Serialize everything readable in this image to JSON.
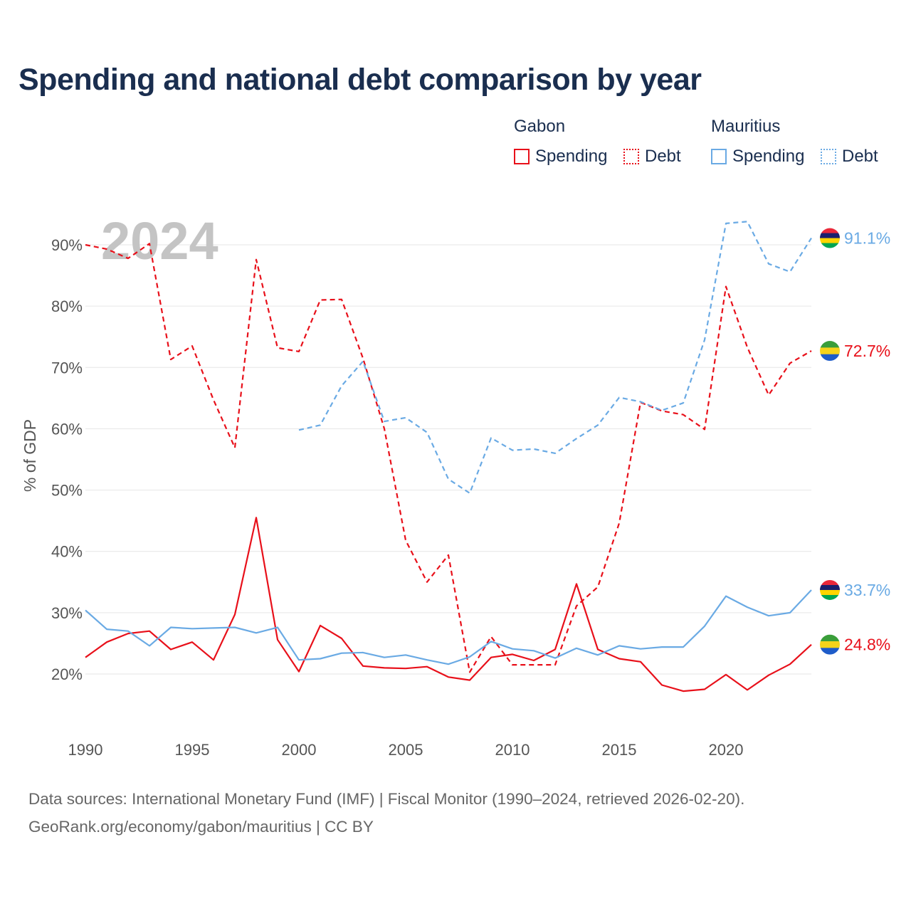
{
  "title": "Spending and national debt comparison by year",
  "legend": {
    "groups": [
      {
        "name": "Gabon",
        "color": "#e8101a",
        "items": [
          {
            "label": "Spending",
            "style": "solid"
          },
          {
            "label": "Debt",
            "style": "dotted"
          }
        ]
      },
      {
        "name": "Mauritius",
        "color": "#6aaae4",
        "items": [
          {
            "label": "Spending",
            "style": "solid"
          },
          {
            "label": "Debt",
            "style": "dotted"
          }
        ]
      }
    ]
  },
  "year_watermark": "2024",
  "footer": {
    "line1": "Data sources: International Monetary Fund (IMF) | Fiscal Monitor (1990–2024, retrieved 2026-02-20).",
    "line2": "GeoRank.org/economy/gabon/mauritius | CC BY"
  },
  "chart_data": {
    "type": "line",
    "title": "Spending and national debt comparison by year",
    "xlabel": "",
    "ylabel": "% of GDP",
    "xlim": [
      1990,
      2024
    ],
    "ylim": [
      10,
      95
    ],
    "x_ticks": [
      1990,
      1995,
      2000,
      2005,
      2010,
      2015,
      2020
    ],
    "y_ticks": [
      20,
      30,
      40,
      50,
      60,
      70,
      80,
      90
    ],
    "y_tick_labels": [
      "20%",
      "30%",
      "40%",
      "50%",
      "60%",
      "70%",
      "80%",
      "90%"
    ],
    "grid": true,
    "series": [
      {
        "name": "Gabon Debt",
        "country": "Gabon",
        "metric": "Debt",
        "color": "#e8101a",
        "dash": "dashed",
        "x": [
          1990,
          1991,
          1992,
          1993,
          1994,
          1995,
          1996,
          1997,
          1998,
          1999,
          2000,
          2001,
          2002,
          2003,
          2004,
          2005,
          2006,
          2007,
          2008,
          2009,
          2010,
          2011,
          2012,
          2013,
          2014,
          2015,
          2016,
          2017,
          2018,
          2019,
          2020,
          2021,
          2022,
          2023,
          2024
        ],
        "values": [
          90.0,
          89.3,
          87.8,
          90.2,
          71.3,
          73.5,
          64.7,
          56.9,
          87.6,
          73.2,
          72.6,
          81.0,
          81.1,
          71.5,
          60.0,
          41.8,
          35.0,
          39.4,
          20.3,
          26.1,
          21.5,
          21.5,
          21.5,
          31.1,
          34.2,
          44.6,
          64.3,
          62.9,
          62.3,
          59.9,
          83.2,
          73.3,
          65.5,
          70.7,
          72.7
        ],
        "end_label": "72.7%"
      },
      {
        "name": "Mauritius Debt",
        "country": "Mauritius",
        "metric": "Debt",
        "color": "#6aaae4",
        "dash": "dashed",
        "x": [
          2000,
          2001,
          2002,
          2003,
          2004,
          2005,
          2006,
          2007,
          2008,
          2009,
          2010,
          2011,
          2012,
          2013,
          2014,
          2015,
          2016,
          2017,
          2018,
          2019,
          2020,
          2021,
          2022,
          2023,
          2024
        ],
        "values": [
          59.8,
          60.6,
          67.0,
          71.0,
          61.2,
          61.8,
          59.4,
          51.8,
          49.5,
          58.5,
          56.5,
          56.7,
          56.0,
          58.4,
          60.6,
          65.1,
          64.4,
          63.0,
          64.2,
          74.5,
          93.5,
          93.8,
          86.9,
          85.6,
          91.1
        ],
        "end_label": "91.1%"
      },
      {
        "name": "Gabon Spending",
        "country": "Gabon",
        "metric": "Spending",
        "color": "#e8101a",
        "dash": "solid",
        "x": [
          1990,
          1991,
          1992,
          1993,
          1994,
          1995,
          1996,
          1997,
          1998,
          1999,
          2000,
          2001,
          2002,
          2003,
          2004,
          2005,
          2006,
          2007,
          2008,
          2009,
          2010,
          2011,
          2012,
          2013,
          2014,
          2015,
          2016,
          2017,
          2018,
          2019,
          2020,
          2021,
          2022,
          2023,
          2024
        ],
        "values": [
          22.7,
          25.2,
          26.6,
          27.0,
          24.0,
          25.2,
          22.3,
          29.7,
          45.5,
          25.6,
          20.4,
          27.9,
          25.8,
          21.3,
          21.0,
          20.9,
          21.2,
          19.5,
          19.0,
          22.7,
          23.2,
          22.2,
          24.0,
          34.7,
          24.0,
          22.5,
          22.0,
          18.2,
          17.2,
          17.5,
          19.9,
          17.4,
          19.8,
          21.6,
          24.8
        ],
        "end_label": "24.8%"
      },
      {
        "name": "Mauritius Spending",
        "country": "Mauritius",
        "metric": "Spending",
        "color": "#6aaae4",
        "dash": "solid",
        "x": [
          1990,
          1991,
          1992,
          1993,
          1994,
          1995,
          1996,
          1997,
          1998,
          1999,
          2000,
          2001,
          2002,
          2003,
          2004,
          2005,
          2006,
          2007,
          2008,
          2009,
          2010,
          2011,
          2012,
          2013,
          2014,
          2015,
          2016,
          2017,
          2018,
          2019,
          2020,
          2021,
          2022,
          2023,
          2024
        ],
        "values": [
          30.4,
          27.3,
          27.0,
          24.6,
          27.6,
          27.4,
          27.5,
          27.6,
          26.7,
          27.6,
          22.3,
          22.5,
          23.4,
          23.5,
          22.7,
          23.1,
          22.3,
          21.6,
          22.8,
          25.3,
          24.1,
          23.8,
          22.6,
          24.2,
          23.1,
          24.6,
          24.1,
          24.4,
          24.4,
          27.8,
          32.7,
          30.9,
          29.5,
          30.0,
          33.7
        ],
        "end_label": "33.7%"
      }
    ]
  }
}
